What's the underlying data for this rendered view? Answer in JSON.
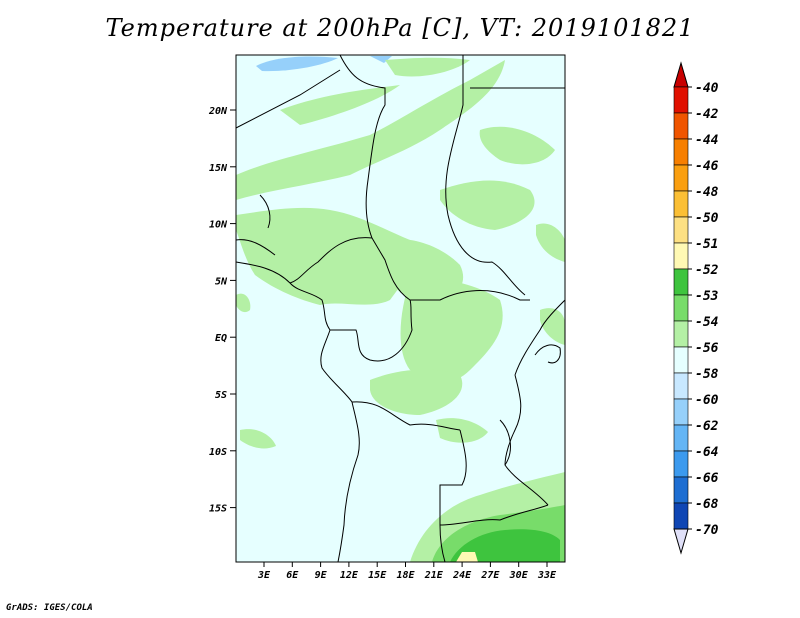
{
  "title": "Temperature at 200hPa [C], VT: 2019101821",
  "credit": "GrADS: IGES/COLA",
  "map": {
    "lat_ticks": [
      "20N",
      "15N",
      "10N",
      "5N",
      "EQ",
      "5S",
      "10S",
      "15S"
    ],
    "lon_ticks": [
      "3E",
      "6E",
      "9E",
      "12E",
      "15E",
      "18E",
      "21E",
      "24E",
      "27E",
      "30E",
      "33E"
    ],
    "background_color": "#e6ffff"
  },
  "colorbar": {
    "labels": [
      "-40",
      "-42",
      "-44",
      "-46",
      "-48",
      "-50",
      "-51",
      "-52",
      "-53",
      "-54",
      "-56",
      "-58",
      "-60",
      "-62",
      "-64",
      "-66",
      "-68",
      "-70"
    ],
    "colors": [
      "#e01000",
      "#f05500",
      "#f77f00",
      "#fa9f10",
      "#fbbf35",
      "#fde083",
      "#fff9b4",
      "#3ec43e",
      "#78dc6a",
      "#b4f0a5",
      "#e6ffff",
      "#c8e8ff",
      "#96d0fa",
      "#64b5f5",
      "#3c9aee",
      "#1e6ed2",
      "#0f46b4",
      "#000a82"
    ],
    "top_arrow_color": "#c80000",
    "bottom_arrow_color": "#e0e0f8"
  }
}
